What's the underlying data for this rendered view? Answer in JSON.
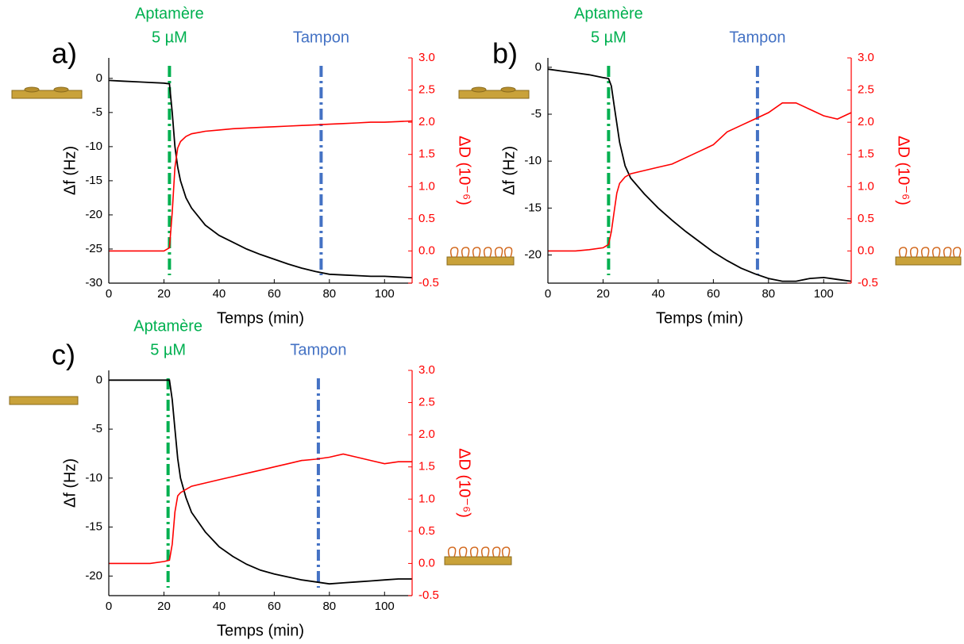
{
  "chart_data": [
    {
      "type": "line",
      "panel_label": "a)",
      "x": [
        0,
        5,
        10,
        15,
        20,
        22,
        23,
        24,
        25,
        26,
        28,
        30,
        35,
        40,
        45,
        50,
        55,
        60,
        65,
        70,
        75,
        80,
        85,
        90,
        95,
        100,
        105,
        110
      ],
      "xlim": [
        0,
        110
      ],
      "xticks": [
        0,
        20,
        40,
        60,
        80,
        100
      ],
      "ylim": [
        -30,
        3
      ],
      "yticks": [
        0,
        -5,
        -10,
        -15,
        -20,
        -25,
        -30
      ],
      "y2lim": [
        -0.5,
        3
      ],
      "y2ticks": [
        {
          "value": 3,
          "label": "3.0"
        },
        2.5,
        {
          "value": 2,
          "label": "2.0"
        },
        1.5,
        {
          "value": 1,
          "label": "1.0"
        },
        0.5,
        {
          "value": 0,
          "label": "0.0"
        },
        -0.5
      ],
      "xlabel": "Temps (min)",
      "ylabel": "Δf (Hz)",
      "y2label": "ΔD (10⁻⁶)",
      "series": [
        {
          "color": "#000000",
          "axis": "y",
          "values": [
            -0.3,
            -0.4,
            -0.5,
            -0.6,
            -0.7,
            -0.8,
            -5,
            -10,
            -13,
            -15,
            -17.5,
            -19,
            -21.5,
            -23,
            -24,
            -25,
            -25.8,
            -26.5,
            -27.2,
            -27.8,
            -28.3,
            -28.7,
            -28.8,
            -28.9,
            -29,
            -29,
            -29.1,
            -29.2
          ]
        },
        {
          "color": "#ff0000",
          "axis": "y2",
          "values": [
            0,
            0,
            0,
            0,
            0,
            0.05,
            0.6,
            1.3,
            1.6,
            1.7,
            1.78,
            1.82,
            1.86,
            1.88,
            1.9,
            1.91,
            1.92,
            1.93,
            1.94,
            1.95,
            1.96,
            1.97,
            1.98,
            1.99,
            2,
            2,
            2.01,
            2.02
          ]
        }
      ],
      "markers": [
        {
          "x": 22,
          "color": "#00b050",
          "lines": [
            "Aptamère",
            "5 µM"
          ]
        },
        {
          "x": 77,
          "color": "#4472c4",
          "lines": [
            "Tampon"
          ]
        }
      ]
    },
    {
      "type": "line",
      "panel_label": "b)",
      "x": [
        0,
        5,
        10,
        15,
        20,
        22,
        23,
        24,
        25,
        26,
        28,
        30,
        35,
        40,
        45,
        50,
        55,
        60,
        65,
        70,
        75,
        80,
        85,
        90,
        95,
        100,
        105,
        110
      ],
      "xlim": [
        0,
        110
      ],
      "xticks": [
        0,
        20,
        40,
        60,
        80,
        100
      ],
      "ylim": [
        -23,
        1
      ],
      "yticks": [
        0,
        -5,
        -10,
        -15,
        -20
      ],
      "y2lim": [
        -0.5,
        3
      ],
      "y2ticks": [
        {
          "value": 3,
          "label": "3.0"
        },
        2.5,
        {
          "value": 2,
          "label": "2.0"
        },
        1.5,
        {
          "value": 1,
          "label": "1.0"
        },
        0.5,
        {
          "value": 0,
          "label": "0.0"
        },
        -0.5
      ],
      "xlabel": "Temps (min)",
      "ylabel": "Δf (Hz)",
      "y2label": "ΔD (10⁻⁶)",
      "series": [
        {
          "color": "#000000",
          "axis": "y",
          "values": [
            -0.2,
            -0.4,
            -0.6,
            -0.8,
            -1.1,
            -1.2,
            -2,
            -4,
            -6,
            -8,
            -10.5,
            -11.8,
            -13.5,
            -15,
            -16.3,
            -17.5,
            -18.6,
            -19.7,
            -20.6,
            -21.4,
            -22,
            -22.5,
            -22.8,
            -22.8,
            -22.5,
            -22.4,
            -22.6,
            -22.8
          ]
        },
        {
          "color": "#ff0000",
          "axis": "y2",
          "values": [
            0,
            0,
            0,
            0.02,
            0.05,
            0.1,
            0.3,
            0.6,
            0.9,
            1.05,
            1.15,
            1.2,
            1.25,
            1.3,
            1.35,
            1.45,
            1.55,
            1.65,
            1.85,
            1.95,
            2.05,
            2.15,
            2.3,
            2.3,
            2.2,
            2.1,
            2.05,
            2.15
          ]
        }
      ],
      "markers": [
        {
          "x": 22,
          "color": "#00b050",
          "lines": [
            "Aptamère",
            "5 µM"
          ]
        },
        {
          "x": 76,
          "color": "#4472c4",
          "lines": [
            "Tampon"
          ]
        }
      ]
    },
    {
      "type": "line",
      "panel_label": "c)",
      "x": [
        0,
        5,
        10,
        15,
        20,
        22,
        23,
        24,
        25,
        26,
        28,
        30,
        35,
        40,
        45,
        50,
        55,
        60,
        65,
        70,
        75,
        80,
        85,
        90,
        95,
        100,
        105,
        110
      ],
      "xlim": [
        0,
        110
      ],
      "xticks": [
        0,
        20,
        40,
        60,
        80,
        100
      ],
      "ylim": [
        -22,
        1
      ],
      "yticks": [
        0,
        -5,
        -10,
        -15,
        -20
      ],
      "y2lim": [
        -0.5,
        3
      ],
      "y2ticks": [
        {
          "value": 3,
          "label": "3.0"
        },
        2.5,
        {
          "value": 2,
          "label": "2.0"
        },
        1.5,
        {
          "value": 1,
          "label": "1.0"
        },
        0.5,
        {
          "value": 0,
          "label": "0.0"
        },
        -0.5
      ],
      "xlabel": "Temps (min)",
      "ylabel": "Δf (Hz)",
      "y2label": "ΔD (10⁻⁶)",
      "series": [
        {
          "color": "#000000",
          "axis": "y",
          "values": [
            0,
            0,
            0,
            0,
            0,
            0,
            -2,
            -5,
            -8,
            -10,
            -12,
            -13.5,
            -15.5,
            -17,
            -18,
            -18.8,
            -19.4,
            -19.8,
            -20.1,
            -20.4,
            -20.6,
            -20.8,
            -20.7,
            -20.6,
            -20.5,
            -20.4,
            -20.3,
            -20.3
          ]
        },
        {
          "color": "#ff0000",
          "axis": "y2",
          "values": [
            0,
            0,
            0,
            0,
            0.03,
            0.05,
            0.3,
            0.8,
            1.05,
            1.1,
            1.15,
            1.2,
            1.25,
            1.3,
            1.35,
            1.4,
            1.45,
            1.5,
            1.55,
            1.6,
            1.62,
            1.65,
            1.7,
            1.65,
            1.6,
            1.55,
            1.58,
            1.58
          ]
        }
      ],
      "markers": [
        {
          "x": 21.5,
          "color": "#00b050",
          "lines": [
            "Aptamère",
            "5 µM"
          ]
        },
        {
          "x": 76,
          "color": "#4472c4",
          "lines": [
            "Tampon"
          ]
        }
      ]
    }
  ]
}
